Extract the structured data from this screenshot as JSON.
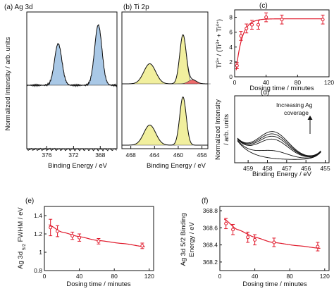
{
  "colors": {
    "blue_fill": "#a9c8e6",
    "yellow_fill": "#f1ef9e",
    "red_fill": "#ef6b6b",
    "fit_red": "#e0192b",
    "line": "#111111"
  },
  "panels": {
    "a": {
      "label": "(a) Ag 3d"
    },
    "b": {
      "label": "(b) Ti 2p"
    },
    "c": {
      "label": "(c)"
    },
    "d": {
      "label": "(d)",
      "annotation": [
        "Increasing Ag",
        "coverage"
      ]
    },
    "e": {
      "label": "(e)"
    },
    "f": {
      "label": "(f)"
    }
  },
  "shared_ylabel": "Normalized Intensity / arb. units",
  "ab_xlabel": "Binding Energy / eV",
  "chart_data": [
    {
      "panel": "a",
      "type": "line",
      "title": "(a) Ag 3d",
      "xlabel": "Binding Energy / eV",
      "ylabel": "Normalized Intensity / arb. units",
      "xlim": [
        379,
        365.5
      ],
      "x_reversed": true,
      "xticks": [
        376,
        372,
        368
      ],
      "xtick_labels": [
        "376",
        "372",
        "368"
      ],
      "series": [
        {
          "name": "",
          "description_peaks_eV": [
            374.3,
            368.3
          ],
          "baseline": "upper"
        },
        {
          "name": "",
          "flat": true,
          "baseline": "lower"
        }
      ],
      "peaks": [
        {
          "center": 374.3,
          "width": 0.55,
          "height": 0.62,
          "fill": "blue"
        },
        {
          "center": 368.3,
          "width": 0.55,
          "height": 0.9,
          "fill": "blue"
        }
      ]
    },
    {
      "panel": "b",
      "type": "line",
      "title": "(b) Ti 2p",
      "xlabel": "Binding Energy / eV",
      "xlim": [
        469.5,
        455
      ],
      "x_reversed": true,
      "xticks": [
        468,
        464,
        460,
        456
      ],
      "xtick_labels": [
        "468",
        "464",
        "460",
        "456"
      ],
      "upper_peaks": [
        {
          "center": 464.8,
          "width": 1.0,
          "height": 0.3,
          "fill": "yellow"
        },
        {
          "center": 459.2,
          "width": 0.55,
          "height": 0.73,
          "fill": "yellow"
        },
        {
          "center": 457.6,
          "width": 0.7,
          "height": 0.06,
          "fill": "red"
        }
      ],
      "lower_peaks": [
        {
          "center": 464.8,
          "width": 1.0,
          "height": 0.3,
          "fill": "yellow"
        },
        {
          "center": 459.2,
          "width": 0.55,
          "height": 0.72,
          "fill": "yellow"
        }
      ]
    },
    {
      "panel": "c",
      "type": "scatter",
      "xlabel": "Dosing time / minutes",
      "ylabel": "Ti3+ / (Ti3+ + Ti4+)",
      "ylabel_parts": [
        "Ti",
        "3+",
        " / (Ti",
        "3+",
        " + Ti",
        "4+",
        ")"
      ],
      "xlim": [
        0,
        120
      ],
      "ylim": [
        0,
        9
      ],
      "xticks": [
        0,
        40,
        80,
        120
      ],
      "yticks": [
        0,
        2,
        4,
        6,
        8
      ],
      "x": [
        3,
        8,
        15,
        22,
        30,
        40,
        60,
        112
      ],
      "y": [
        1.5,
        5.5,
        6.5,
        7.0,
        7.0,
        8.0,
        7.7,
        7.7
      ],
      "err": [
        0.4,
        0.6,
        0.6,
        0.6,
        0.6,
        0.6,
        0.6,
        0.6
      ],
      "fit": {
        "form": "exp_rise",
        "a": 7.8,
        "y0": 0.9,
        "tau": 7.5
      }
    },
    {
      "panel": "d",
      "type": "line",
      "xlabel": "Binding Energy / eV",
      "ylabel": "Normalized Intensity / arb. units",
      "ylabel_lines": [
        "Normalized Intensity",
        "/ arb. units"
      ],
      "xlim": [
        459.7,
        454.8
      ],
      "x_reversed": true,
      "xticks": [
        459,
        458,
        457,
        456,
        455
      ],
      "xtick_labels": [
        "459",
        "458",
        "457",
        "456",
        "455"
      ],
      "curve_amplitudes": [
        0.0,
        0.28,
        0.7,
        0.8,
        0.88,
        0.96
      ],
      "annotation": "Increasing Ag coverage"
    },
    {
      "panel": "e",
      "type": "scatter",
      "xlabel": "Dosing time / minutes",
      "ylabel": "Ag 3d 5/2 FWHM / eV",
      "ylabel_parts": [
        "Ag 3d",
        " 5/2",
        " FWHM / eV"
      ],
      "xlim": [
        0,
        125
      ],
      "ylim": [
        0.8,
        1.5
      ],
      "xticks": [
        0,
        40,
        80,
        120
      ],
      "yticks": [
        0.8,
        1.0,
        1.2,
        1.4
      ],
      "x": [
        7,
        15,
        32,
        40,
        62,
        112
      ],
      "y": [
        1.27,
        1.23,
        1.18,
        1.16,
        1.12,
        1.07
      ],
      "err": [
        0.09,
        0.06,
        0.04,
        0.04,
        0.03,
        0.03
      ],
      "fit": {
        "form": "decay",
        "points": [
          [
            5,
            1.3
          ],
          [
            20,
            1.22
          ],
          [
            40,
            1.17
          ],
          [
            60,
            1.13
          ],
          [
            90,
            1.095
          ],
          [
            115,
            1.06
          ]
        ]
      }
    },
    {
      "panel": "f",
      "type": "scatter",
      "xlabel": "Dosing time / minutes",
      "ylabel": "Ag 3d 5/2 Binding Energy / eV",
      "ylabel_lines": [
        "Ag 3d 5/2 Binding",
        "Energy / eV"
      ],
      "xlim": [
        0,
        125
      ],
      "ylim": [
        368.1,
        368.85
      ],
      "xticks": [
        0,
        40,
        80,
        120
      ],
      "yticks": [
        368.2,
        368.4,
        368.6,
        368.8
      ],
      "ytick_labels": [
        "368.2",
        "368.4",
        "368.6",
        "368.8"
      ],
      "x": [
        7,
        15,
        32,
        40,
        62,
        112
      ],
      "y": [
        368.65,
        368.58,
        368.49,
        368.46,
        368.43,
        368.38
      ],
      "err": [
        0.06,
        0.06,
        0.06,
        0.06,
        0.05,
        0.05
      ],
      "fit": {
        "form": "decay",
        "points": [
          [
            5,
            368.7
          ],
          [
            20,
            368.58
          ],
          [
            40,
            368.49
          ],
          [
            60,
            368.43
          ],
          [
            90,
            368.39
          ],
          [
            115,
            368.36
          ]
        ]
      }
    }
  ]
}
